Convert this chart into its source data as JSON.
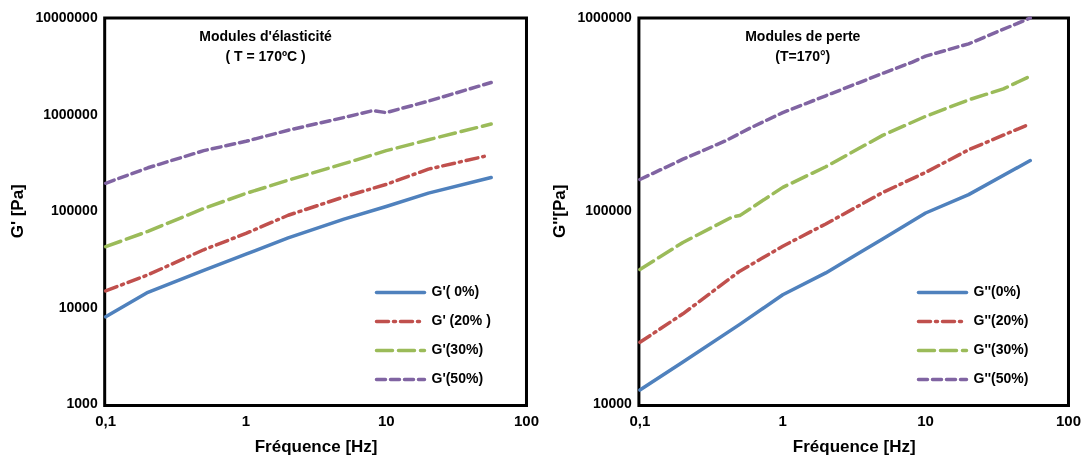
{
  "chart_data": [
    {
      "type": "line",
      "title": "Modules d'élasticité",
      "subtitle": "( T = 170ºC )",
      "xlabel": "Fréquence [Hz]",
      "ylabel": "G' [Pa]",
      "log": "xy",
      "grid": false,
      "legend": "bottom right",
      "marker": "none",
      "xlim": [
        0.1,
        100
      ],
      "xticks": [
        {
          "value": 0.1,
          "label": "0,1"
        },
        1,
        10,
        100
      ],
      "ylim": [
        1000,
        10000000
      ],
      "yticks": [
        1000,
        10000,
        100000,
        1000000,
        10000000
      ],
      "x": [
        0.1,
        0.2,
        0.5,
        1,
        2,
        5,
        10,
        20,
        56
      ],
      "series": [
        {
          "name": "G'( 0%)",
          "color": "#4f81bd",
          "line_style": "solid",
          "values": [
            8100,
            14500,
            24500,
            36000,
            53000,
            83000,
            112000,
            154000,
            224000
          ]
        },
        {
          "name": "G' (20% )",
          "color": "#c0504d",
          "line_style": "dashed",
          "x": [
            0.1,
            0.2,
            0.5,
            1,
            2,
            5,
            10,
            20,
            50
          ],
          "values": [
            15000,
            22000,
            40000,
            59000,
            91000,
            141000,
            190000,
            273000,
            370000
          ]
        },
        {
          "name": "G'(30%)",
          "color": "#9bbb59",
          "line_style": "dashed",
          "values": [
            43000,
            62000,
            107000,
            153000,
            210000,
            311000,
            424000,
            550000,
            800000
          ]
        },
        {
          "name": "G'(50%)",
          "color": "#8064a2",
          "line_style": "dashed",
          "x": [
            0.1,
            0.2,
            0.5,
            1,
            2,
            5,
            8,
            10,
            20,
            56
          ],
          "values": [
            195000,
            282000,
            424000,
            530000,
            690000,
            935000,
            1100000,
            1050000,
            1380000,
            2150000
          ]
        }
      ]
    },
    {
      "type": "line",
      "title": "Modules de perte",
      "subtitle": "(T=170°)",
      "xlabel": "Fréquence [Hz]",
      "ylabel": "G''[Pa]",
      "log": "xy",
      "grid": false,
      "legend": "bottom right",
      "marker": "none",
      "xlim": [
        0.1,
        100
      ],
      "xticks": [
        {
          "value": 0.1,
          "label": "0,1"
        },
        1,
        10,
        100
      ],
      "ylim": [
        10000,
        1000000
      ],
      "yticks": [
        10000,
        100000,
        1000000
      ],
      "x": [
        0.1,
        0.2,
        0.5,
        1,
        2,
        5,
        10,
        20,
        54
      ],
      "series": [
        {
          "name": "G''(0%)",
          "color": "#4f81bd",
          "line_style": "solid",
          "values": [
            11900,
            16600,
            26000,
            37000,
            48000,
            72000,
            98000,
            122000,
            183000
          ]
        },
        {
          "name": "G''(20%)",
          "color": "#c0504d",
          "line_style": "dashed",
          "x": [
            0.1,
            0.2,
            0.5,
            1,
            2,
            5,
            10,
            20,
            50
          ],
          "values": [
            21000,
            29500,
            49000,
            66000,
            86000,
            125000,
            159000,
            208000,
            277000
          ]
        },
        {
          "name": "G''(30%)",
          "color": "#9bbb59",
          "line_style": "dashed",
          "x": [
            0.1,
            0.2,
            0.45,
            0.5,
            1,
            2,
            5,
            10,
            20,
            35,
            54
          ],
          "values": [
            50000,
            69000,
            94000,
            95000,
            133000,
            170000,
            247000,
            310000,
            377000,
            430000,
            500000
          ]
        },
        {
          "name": "G''(50%)",
          "color": "#8064a2",
          "line_style": "dashed",
          "x": [
            0.1,
            0.2,
            0.4,
            0.6,
            1,
            2,
            5,
            8,
            10,
            20,
            54
          ],
          "values": [
            146000,
            186000,
            232000,
            271000,
            324000,
            396000,
            517000,
            590000,
            635000,
            735000,
            1000000
          ]
        }
      ]
    }
  ]
}
